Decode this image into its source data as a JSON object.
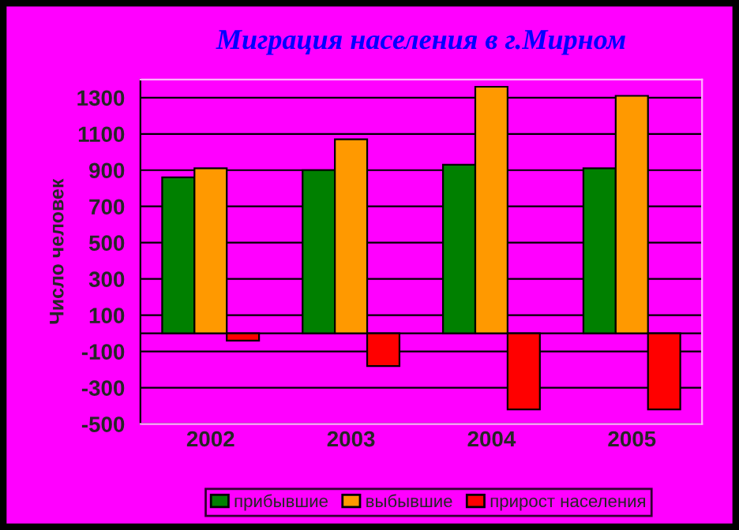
{
  "chart_data": {
    "type": "bar",
    "title": "Миграция населения в г.Мирном",
    "ylabel": "Число человек",
    "categories": [
      "2002",
      "2003",
      "2004",
      "2005"
    ],
    "series": [
      {
        "name": "прибывшие",
        "color": "#008000",
        "values": [
          860,
          900,
          930,
          910
        ]
      },
      {
        "name": "выбывшие",
        "color": "#ff9900",
        "values": [
          910,
          1070,
          1360,
          1310
        ]
      },
      {
        "name": "прирост населения",
        "color": "#ff0000",
        "values": [
          -40,
          -180,
          -420,
          -420
        ]
      }
    ],
    "ylim": [
      -500,
      1400
    ],
    "yticks": [
      -500,
      -300,
      -100,
      100,
      300,
      500,
      700,
      900,
      1100,
      1300
    ],
    "grid": "y",
    "legend": "bottom"
  }
}
